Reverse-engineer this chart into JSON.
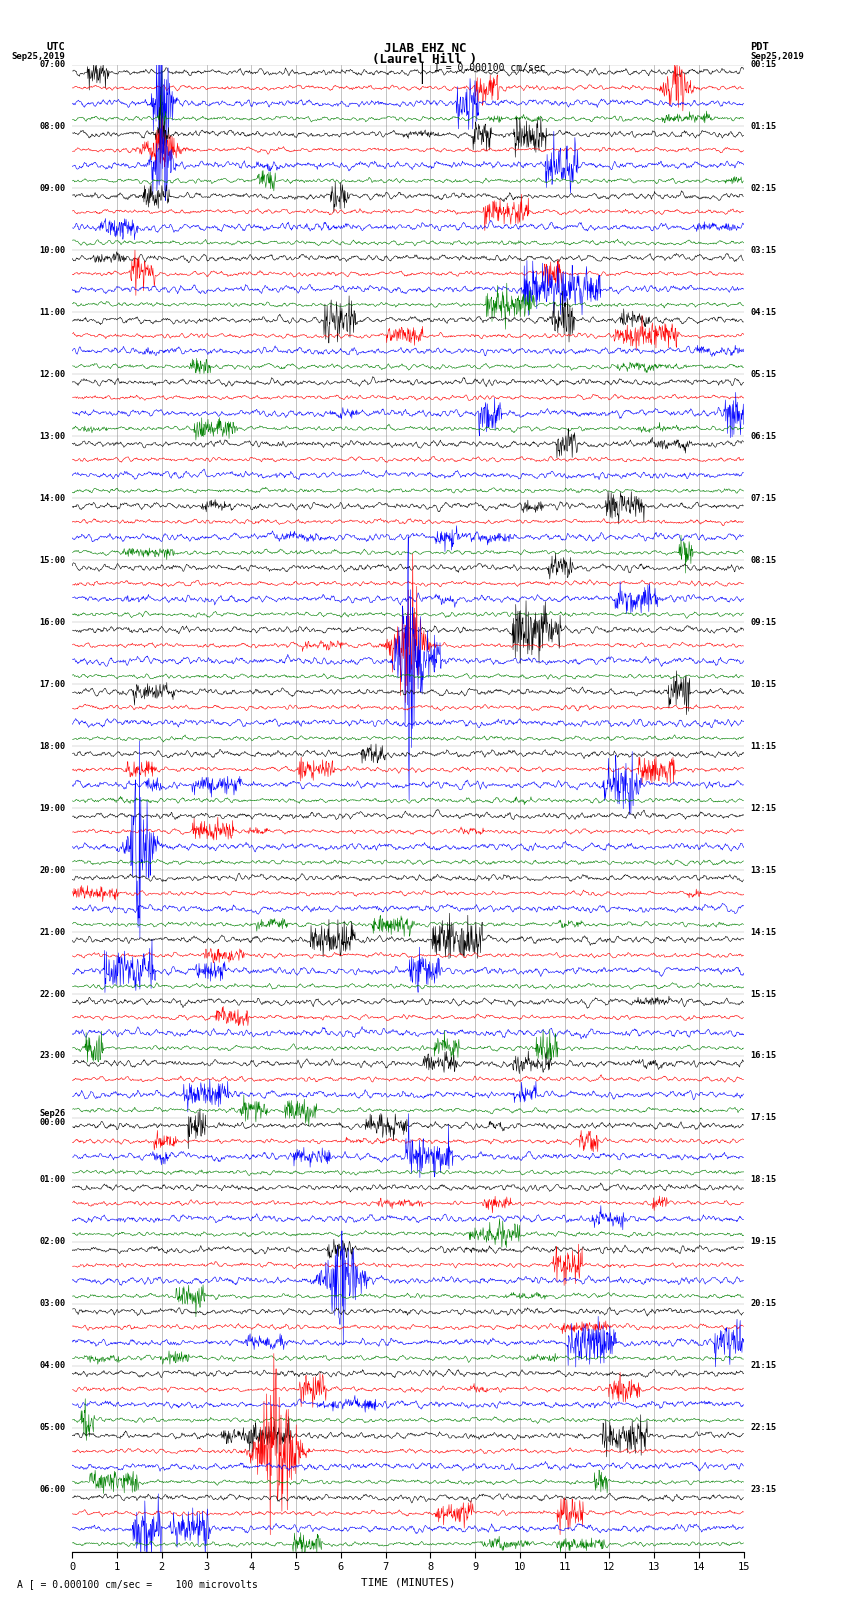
{
  "title_line1": "JLAB EHZ NC",
  "title_line2": "(Laurel Hill )",
  "scale_text": "I = 0.000100 cm/sec",
  "bottom_label": "TIME (MINUTES)",
  "footer_text": "A [ = 0.000100 cm/sec =    100 microvolts",
  "x_min": 0,
  "x_max": 15,
  "x_ticks": [
    0,
    1,
    2,
    3,
    4,
    5,
    6,
    7,
    8,
    9,
    10,
    11,
    12,
    13,
    14,
    15
  ],
  "left_times": [
    "07:00",
    "08:00",
    "09:00",
    "10:00",
    "11:00",
    "12:00",
    "13:00",
    "14:00",
    "15:00",
    "16:00",
    "17:00",
    "18:00",
    "19:00",
    "20:00",
    "21:00",
    "22:00",
    "23:00",
    "Sep26\n00:00",
    "01:00",
    "02:00",
    "03:00",
    "04:00",
    "05:00",
    "06:00"
  ],
  "right_times": [
    "00:15",
    "01:15",
    "02:15",
    "03:15",
    "04:15",
    "05:15",
    "06:15",
    "07:15",
    "08:15",
    "09:15",
    "10:15",
    "11:15",
    "12:15",
    "13:15",
    "14:15",
    "15:15",
    "16:15",
    "17:15",
    "18:15",
    "19:15",
    "20:15",
    "21:15",
    "22:15",
    "23:15"
  ],
  "trace_colors": [
    "black",
    "red",
    "blue",
    "green"
  ],
  "n_hour_blocks": 24,
  "traces_per_block": 4,
  "bg_color": "white",
  "grid_color": "#888888",
  "noise_scales": [
    0.25,
    0.18,
    0.28,
    0.18
  ],
  "fig_width": 8.5,
  "fig_height": 16.13,
  "dpi": 100
}
